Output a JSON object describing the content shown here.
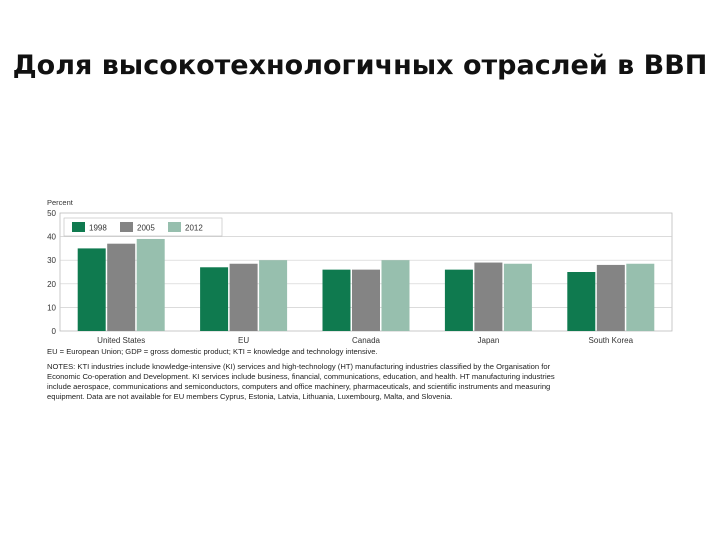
{
  "slide": {
    "title": "Доля высокотехнологичных отраслей в ВВП"
  },
  "chart_data": {
    "type": "bar",
    "title": "",
    "ylabel": "Percent",
    "xlabel": "",
    "categories": [
      "United States",
      "EU",
      "Canada",
      "Japan",
      "South Korea"
    ],
    "series": [
      {
        "name": "1998",
        "color": "#0f7a4f",
        "values": [
          35,
          27,
          26,
          26,
          25
        ]
      },
      {
        "name": "2005",
        "color": "#848484",
        "values": [
          37,
          28.5,
          26,
          29,
          28
        ]
      },
      {
        "name": "2012",
        "color": "#97bfae",
        "values": [
          39,
          30,
          30,
          28.5,
          28.5
        ]
      }
    ],
    "ylim": [
      0,
      50
    ],
    "yticks": [
      0,
      10,
      20,
      30,
      40,
      50
    ],
    "grid": true,
    "legend": "top-left"
  },
  "notes": {
    "footnote": "EU = European Union; GDP = gross domestic product; KTI = knowledge and technology intensive.",
    "lines": [
      "NOTES: KTI industries include knowledge-intensive (KI) services and high-technology (HT) manufacturing industries classified by the Organisation for",
      "Economic Co-operation and Development. KI services include business, financial, communications, education, and health. HT manufacturing industries",
      "include aerospace, communications and semiconductors, computers and office machinery, pharmaceuticals, and scientific instruments and measuring",
      "equipment. Data are not available for EU members Cyprus, Estonia, Latvia, Lithuania, Luxembourg, Malta, and Slovenia."
    ]
  }
}
